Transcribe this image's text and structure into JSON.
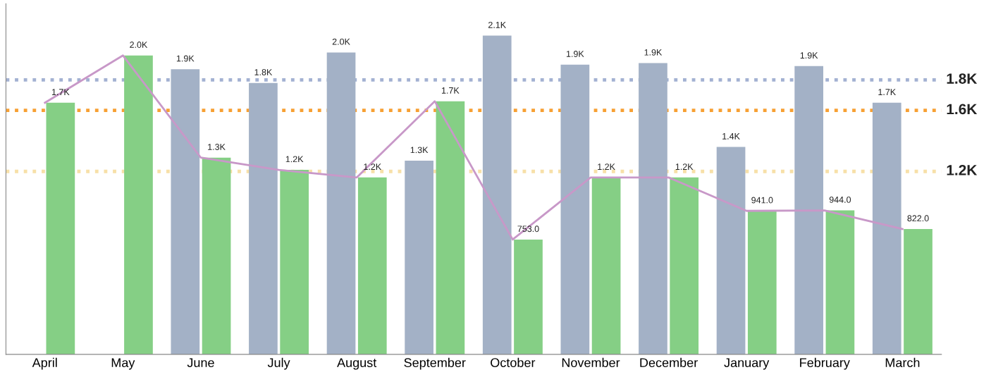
{
  "chart_data": {
    "type": "bar",
    "categories": [
      "April",
      "May",
      "June",
      "July",
      "August",
      "September",
      "October",
      "November",
      "December",
      "January",
      "February",
      "March"
    ],
    "series": [
      {
        "color": "#a3b1c6",
        "values": [
          null,
          null,
          1870,
          1780,
          1980,
          1270,
          2090,
          1900,
          1910,
          1360,
          1890,
          1650
        ],
        "value_labels": [
          null,
          null,
          "1.9K",
          "1.8K",
          "2.0K",
          "1.3K",
          "2.1K",
          "1.9K",
          "1.9K",
          "1.4K",
          "1.9K",
          "1.7K"
        ]
      },
      {
        "color": "#85cf85",
        "values": [
          1650,
          1960,
          1290,
          1210,
          1160,
          1660,
          753,
          1160,
          1160,
          941,
          944,
          822
        ],
        "value_labels": [
          "1.7K",
          "2.0K",
          "1.3K",
          "1.2K",
          "1.2K",
          "1.7K",
          "753.0",
          "1.2K",
          "1.2K",
          "941.0",
          "944.0",
          "822.0"
        ]
      },
      {
        "type": "line",
        "color": "#c898c8",
        "values": [
          1650,
          1960,
          1290,
          1210,
          1160,
          1660,
          753,
          1160,
          1160,
          941,
          944,
          822
        ]
      }
    ],
    "ref_lines": [
      {
        "axis": "y",
        "value": 1800,
        "label": "1.8K",
        "color": "#a3b1d2",
        "line_style": "dotted"
      },
      {
        "axis": "y",
        "value": 1600,
        "label": "1.6K",
        "color": "#f7a033",
        "line_style": "dotted"
      },
      {
        "axis": "y",
        "value": 1200,
        "label": "1.2K",
        "color": "#f7e0a8",
        "line_style": "dotted"
      }
    ],
    "grid": false,
    "legend": false
  }
}
